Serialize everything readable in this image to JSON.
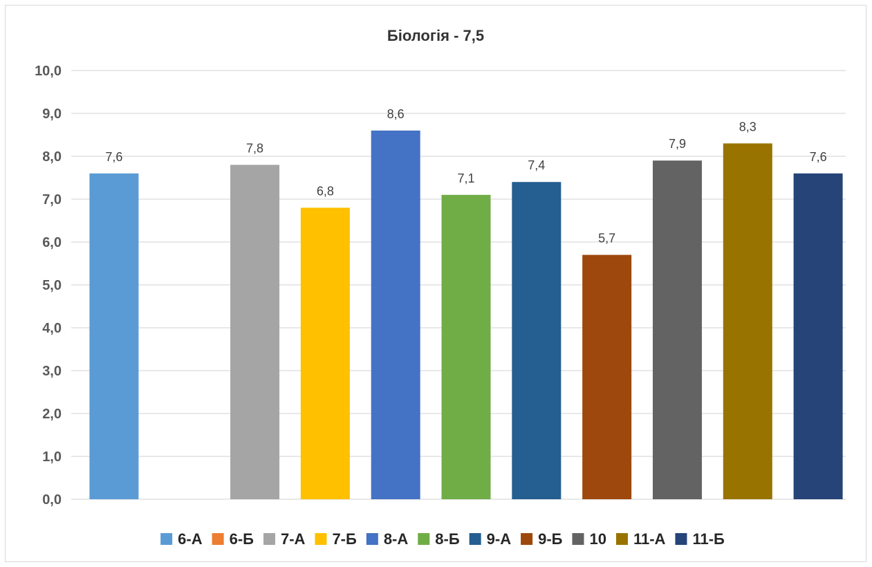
{
  "chart_data": {
    "type": "bar",
    "title": "Біологія - 7,5",
    "xlabel": "",
    "ylabel": "",
    "ylim": [
      0,
      10
    ],
    "yticks": [
      "0,0",
      "1,0",
      "2,0",
      "3,0",
      "4,0",
      "5,0",
      "6,0",
      "7,0",
      "8,0",
      "9,0",
      "10,0"
    ],
    "grid": true,
    "legend_position": "bottom",
    "categories": [
      "6-А",
      "6-Б",
      "7-А",
      "7-Б",
      "8-А",
      "8-Б",
      "9-А",
      "9-Б",
      "10",
      "11-А",
      "11-Б"
    ],
    "series": [
      {
        "name": "6-А",
        "value": 7.6,
        "label": "7,6",
        "color": "#5B9BD5"
      },
      {
        "name": "6-Б",
        "value": null,
        "label": "",
        "color": "#ED7D31"
      },
      {
        "name": "7-А",
        "value": 7.8,
        "label": "7,8",
        "color": "#A5A5A5"
      },
      {
        "name": "7-Б",
        "value": 6.8,
        "label": "6,8",
        "color": "#FFC000"
      },
      {
        "name": "8-А",
        "value": 8.6,
        "label": "8,6",
        "color": "#4472C4"
      },
      {
        "name": "8-Б",
        "value": 7.1,
        "label": "7,1",
        "color": "#70AD47"
      },
      {
        "name": "9-А",
        "value": 7.4,
        "label": "7,4",
        "color": "#255E91"
      },
      {
        "name": "9-Б",
        "value": 5.7,
        "label": "5,7",
        "color": "#9E480E"
      },
      {
        "name": "10",
        "value": 7.9,
        "label": "7,9",
        "color": "#636363"
      },
      {
        "name": "11-А",
        "value": 8.3,
        "label": "8,3",
        "color": "#997300"
      },
      {
        "name": "11-Б",
        "value": 7.6,
        "label": "7,6",
        "color": "#264478"
      }
    ]
  }
}
